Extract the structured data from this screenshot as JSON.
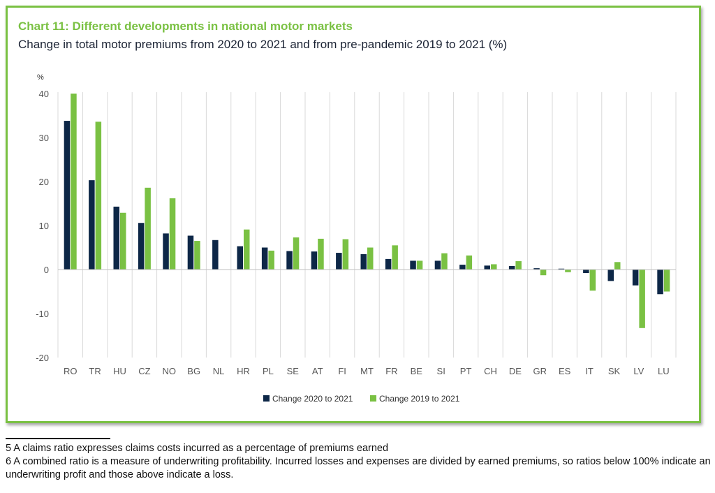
{
  "chart_data": {
    "type": "bar",
    "title": "Chart 11: Different developments in national motor markets",
    "subtitle": "Change in total motor premiums from 2020 to 2021 and from pre-pandemic 2019 to 2021 (%)",
    "ylabel": "%",
    "xlabel": "",
    "ylim": [
      -20,
      40
    ],
    "yticks": [
      "40",
      "30",
      "20",
      "10",
      "0",
      "-10",
      "-20"
    ],
    "ytick_values": [
      40,
      30,
      20,
      10,
      0,
      -10,
      -20
    ],
    "grid": "vertical separators",
    "legend_position": "bottom-center",
    "categories": [
      "RO",
      "TR",
      "HU",
      "CZ",
      "NO",
      "BG",
      "NL",
      "HR",
      "PL",
      "SE",
      "AT",
      "FI",
      "MT",
      "FR",
      "BE",
      "SI",
      "PT",
      "CH",
      "DE",
      "GR",
      "ES",
      "IT",
      "SK",
      "LV",
      "LU"
    ],
    "series": [
      {
        "name": "Change 2020 to 2021",
        "color": "#0d2747",
        "values": [
          33.8,
          20.3,
          14.3,
          10.6,
          8.2,
          7.7,
          6.7,
          5.3,
          5.0,
          4.2,
          4.1,
          3.8,
          3.5,
          2.4,
          2.0,
          2.0,
          1.1,
          0.9,
          0.8,
          0.3,
          0.2,
          -0.8,
          -2.6,
          -3.6,
          -5.6
        ]
      },
      {
        "name": "Change 2019 to 2021",
        "color": "#7ac143",
        "values": [
          40.0,
          33.6,
          12.9,
          18.6,
          16.2,
          6.5,
          0.0,
          9.1,
          4.3,
          7.3,
          7.0,
          6.9,
          5.0,
          5.5,
          2.0,
          3.7,
          3.2,
          1.2,
          1.9,
          -1.3,
          -0.6,
          -4.8,
          1.7,
          -13.3,
          -5.0
        ]
      }
    ]
  },
  "footnotes": {
    "note5": "5 A claims ratio expresses claims costs incurred as a percentage of premiums earned",
    "note6": "6 A combined ratio is a measure of underwriting profitability. Incurred losses and expenses are divided by earned premiums, so ratios below 100% indicate an underwriting profit and those above indicate a loss."
  }
}
